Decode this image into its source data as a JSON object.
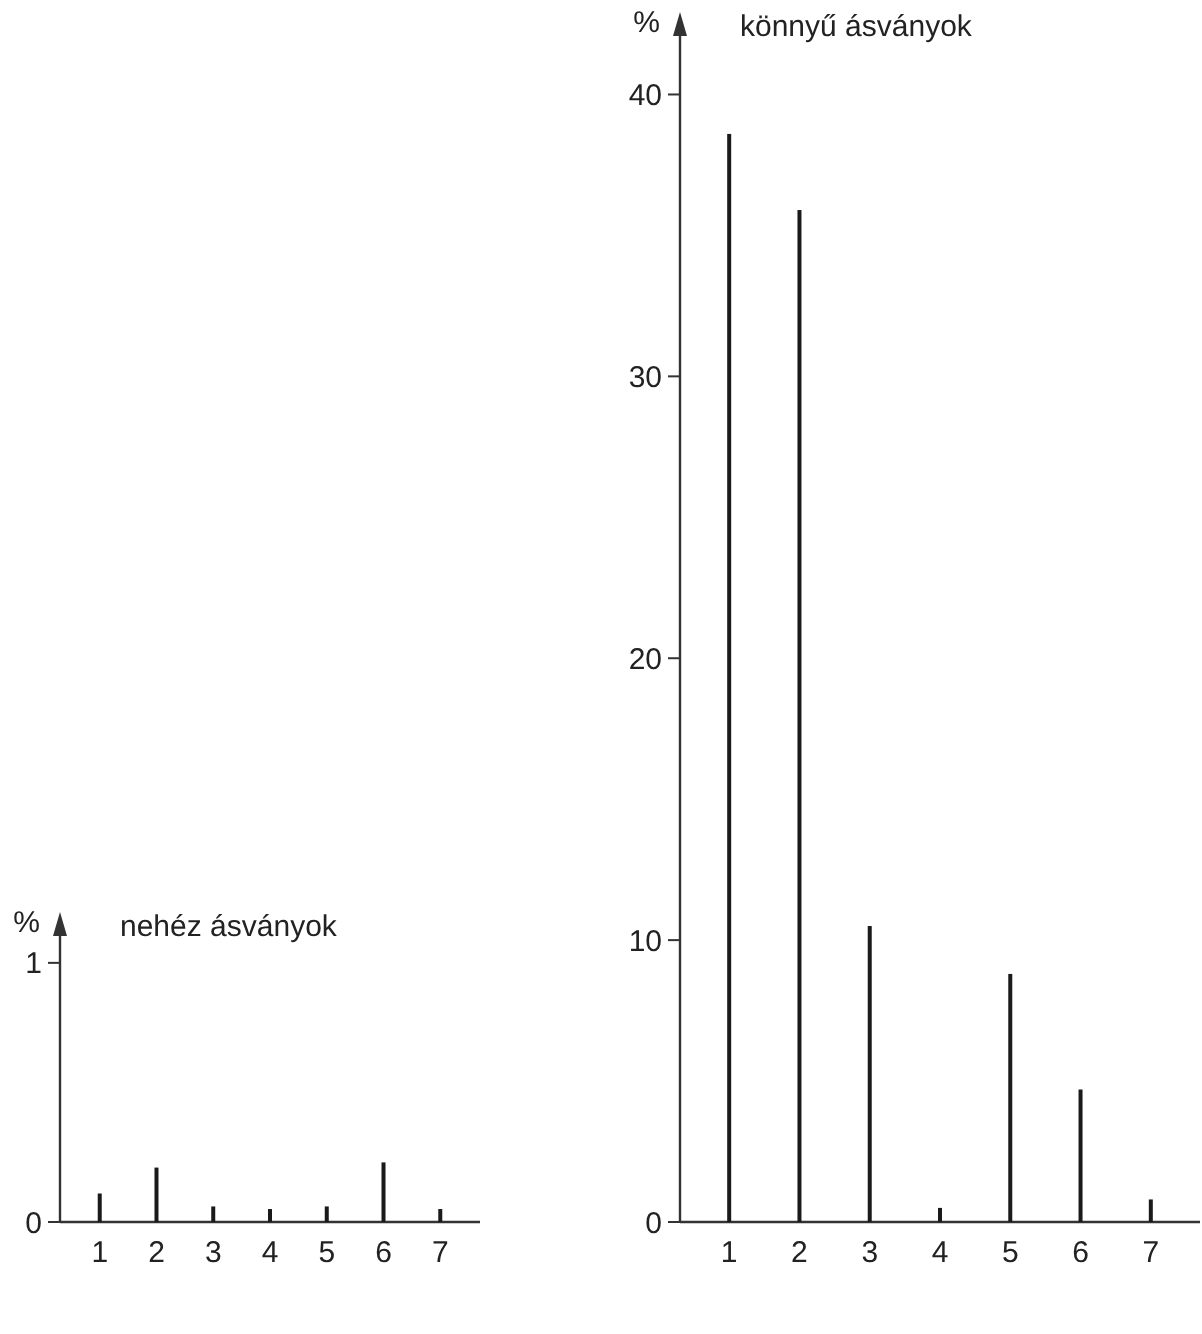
{
  "chart_data": [
    {
      "type": "bar",
      "title": "nehéz ásványok",
      "ylabel": "%",
      "categories": [
        "1",
        "2",
        "3",
        "4",
        "5",
        "6",
        "7"
      ],
      "values": [
        0.11,
        0.21,
        0.06,
        0.05,
        0.06,
        0.23,
        0.05
      ],
      "color": "#1a1a1a",
      "ylim": [
        0,
        1.15
      ],
      "yticks": [
        0,
        1
      ],
      "grid": false
    },
    {
      "type": "bar",
      "title": "könnyű ásványok",
      "ylabel": "%",
      "categories": [
        "1",
        "2",
        "3",
        "4",
        "5",
        "6",
        "7"
      ],
      "values": [
        38.6,
        35.9,
        10.5,
        0.5,
        8.8,
        4.7,
        0.8
      ],
      "color": "#1a1a1a",
      "ylim": [
        0,
        42.5
      ],
      "yticks": [
        0,
        10,
        20,
        30,
        40
      ],
      "grid": false
    }
  ]
}
